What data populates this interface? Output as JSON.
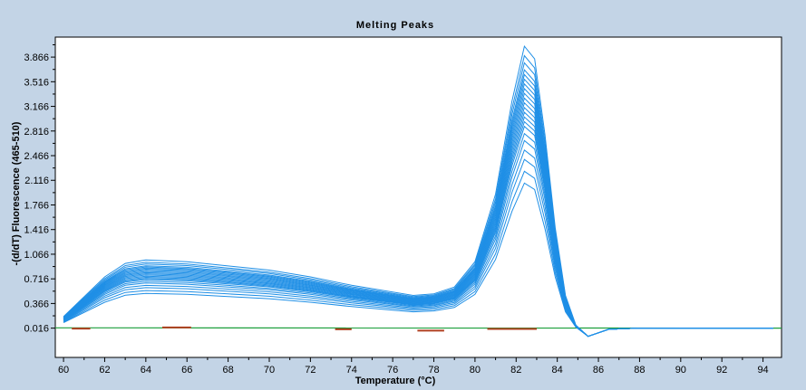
{
  "chart_data": {
    "type": "line",
    "title": "Melting Peaks",
    "xlabel": "Temperature (°C)",
    "ylabel": "-(d/dT) Fluorescence (465-510)",
    "xlim": [
      59.6,
      94.9
    ],
    "ylim": [
      -0.4,
      4.15
    ],
    "x_ticks": [
      "60",
      "62",
      "64",
      "66",
      "68",
      "70",
      "72",
      "74",
      "76",
      "78",
      "80",
      "82",
      "84",
      "86",
      "88",
      "90",
      "92",
      "94"
    ],
    "y_ticks": [
      "0.016",
      "0.366",
      "0.716",
      "1.066",
      "1.416",
      "1.766",
      "2.116",
      "2.466",
      "2.816",
      "3.166",
      "3.516",
      "3.866"
    ],
    "grid": false,
    "legend": "none",
    "colors": {
      "samples": "#1f8fe6",
      "negative": "#1a9e3a",
      "noise": "#b04020",
      "background": "#c3d4e6",
      "plot": "#ffffff"
    },
    "sample_x": [
      60,
      62,
      63,
      64,
      66,
      68,
      70,
      72,
      74,
      76,
      77,
      78,
      79,
      80,
      81,
      81.8,
      82.4,
      82.9,
      83.4,
      83.9,
      84.4,
      84.9,
      85.5,
      86.5,
      88,
      90,
      94.5
    ],
    "sample_base": [
      0.15,
      0.62,
      0.78,
      0.82,
      0.8,
      0.75,
      0.7,
      0.62,
      0.52,
      0.44,
      0.4,
      0.42,
      0.5,
      0.8,
      1.6,
      2.7,
      3.35,
      3.2,
      2.3,
      1.2,
      0.4,
      0.05,
      -0.1,
      0.0,
      0.016,
      0.016,
      0.016
    ],
    "sample_scales": [
      0.62,
      0.67,
      0.72,
      0.76,
      0.8,
      0.83,
      0.86,
      0.88,
      0.9,
      0.92,
      0.94,
      0.96,
      0.98,
      1.0,
      1.02,
      1.04,
      1.06,
      1.08,
      1.1,
      1.13,
      1.16,
      1.2
    ],
    "negative_x": [
      59.6,
      94.9
    ],
    "negative_values": [
      0.02,
      0.016
    ],
    "noise_segments": [
      {
        "x": [
          60.4,
          61.3
        ],
        "values": [
          0.01,
          0.01
        ]
      },
      {
        "x": [
          64.8,
          66.2
        ],
        "values": [
          0.025,
          0.025
        ]
      },
      {
        "x": [
          73.2,
          74.0
        ],
        "values": [
          0.0,
          0.0
        ]
      },
      {
        "x": [
          77.2,
          78.5
        ],
        "values": [
          -0.02,
          -0.02
        ]
      },
      {
        "x": [
          80.6,
          83.0
        ],
        "values": [
          0.005,
          0.005
        ]
      }
    ]
  }
}
